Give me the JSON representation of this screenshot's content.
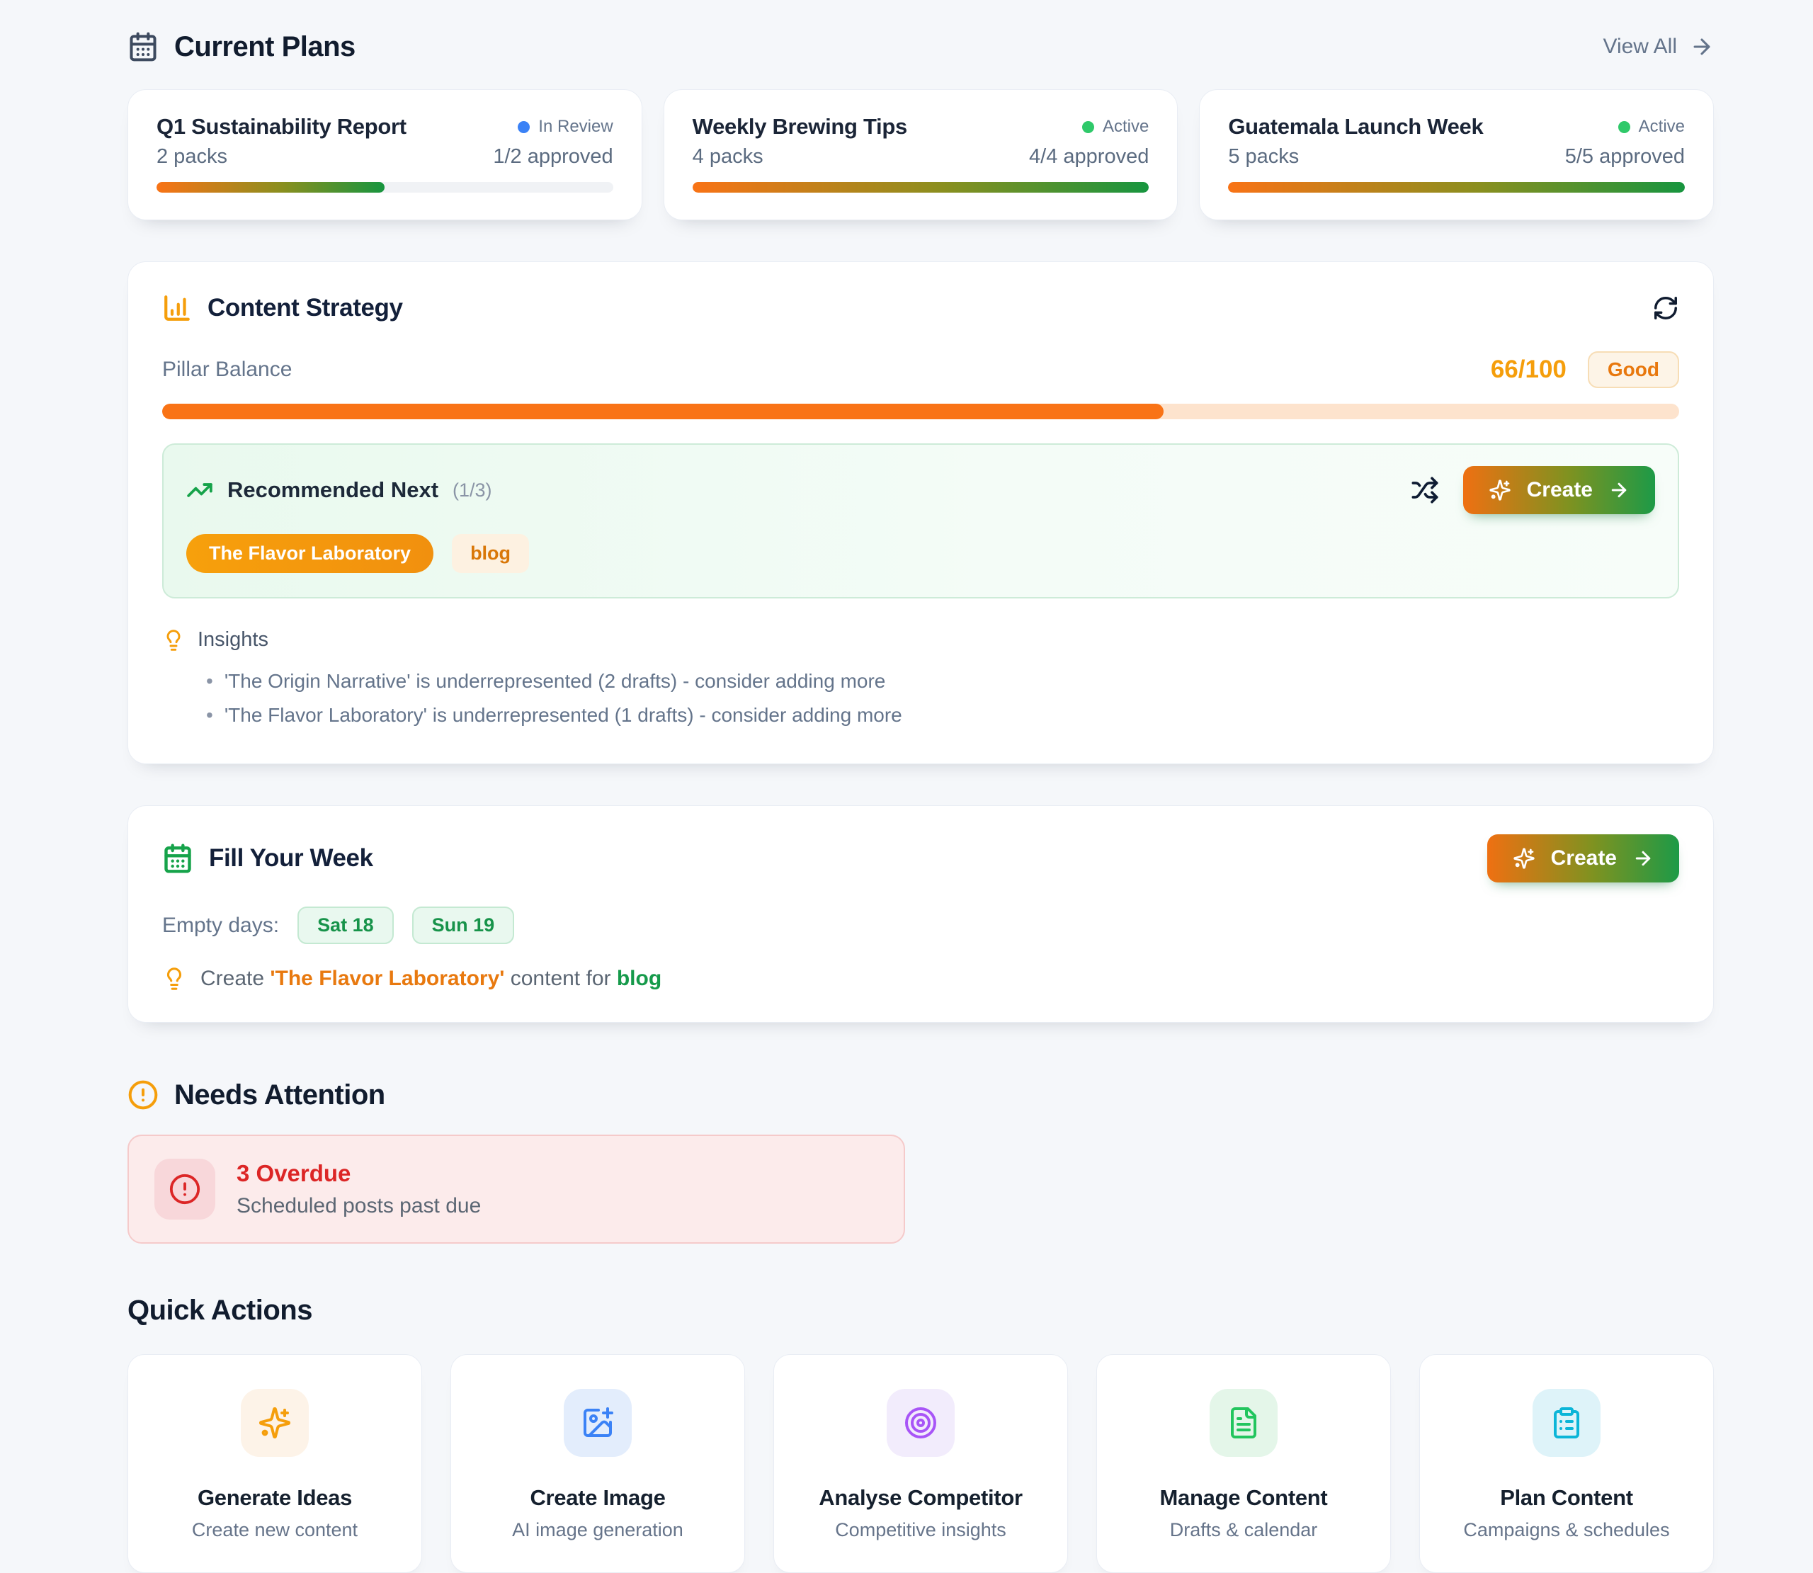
{
  "colors": {
    "accent_orange": "#f97316",
    "accent_green": "#16a34a",
    "status_blue": "#3b82f6",
    "status_green": "#2fc96a",
    "alert_red": "#dc2626"
  },
  "current_plans": {
    "title": "Current Plans",
    "view_all_label": "View All",
    "cards": [
      {
        "title": "Q1 Sustainability Report",
        "status": "In Review",
        "status_color": "#3b82f6",
        "packs": "2 packs",
        "approved": "1/2 approved",
        "progress": 50
      },
      {
        "title": "Weekly Brewing Tips",
        "status": "Active",
        "status_color": "#2fc96a",
        "packs": "4 packs",
        "approved": "4/4 approved",
        "progress": 100
      },
      {
        "title": "Guatemala Launch Week",
        "status": "Active",
        "status_color": "#2fc96a",
        "packs": "5 packs",
        "approved": "5/5 approved",
        "progress": 100
      }
    ]
  },
  "content_strategy": {
    "title": "Content Strategy",
    "pillar_balance_label": "Pillar Balance",
    "score_label": "66/100",
    "score_value": 66,
    "score_badge": "Good",
    "recommended": {
      "title": "Recommended Next",
      "counter": "(1/3)",
      "pillar_tag": "The Flavor Laboratory",
      "format_tag": "blog",
      "create_label": "Create"
    },
    "insights": {
      "title": "Insights",
      "items": [
        "'The Origin Narrative' is underrepresented (2 drafts) - consider adding more",
        "'The Flavor Laboratory' is underrepresented (1 drafts) - consider adding more"
      ]
    }
  },
  "fill_your_week": {
    "title": "Fill Your Week",
    "create_label": "Create",
    "empty_days_label": "Empty days:",
    "days": [
      "Sat 18",
      "Sun 19"
    ],
    "tip": {
      "prefix": "Create",
      "pillar": "'The Flavor Laboratory'",
      "middle": "content for",
      "format": "blog"
    }
  },
  "needs_attention": {
    "title": "Needs Attention",
    "alert": {
      "title": "3 Overdue",
      "subtitle": "Scheduled posts past due"
    }
  },
  "quick_actions": {
    "title": "Quick Actions",
    "items": [
      {
        "title": "Generate Ideas",
        "subtitle": "Create new content",
        "icon": "sparkles-icon",
        "accent": "#f59e0b",
        "bg": "#fdf3e8"
      },
      {
        "title": "Create Image",
        "subtitle": "AI image generation",
        "icon": "image-plus-icon",
        "accent": "#3b82f6",
        "bg": "#e3edfc"
      },
      {
        "title": "Analyse Competitor",
        "subtitle": "Competitive insights",
        "icon": "target-icon",
        "accent": "#a855f7",
        "bg": "#f2ecfc"
      },
      {
        "title": "Manage Content",
        "subtitle": "Drafts & calendar",
        "icon": "file-text-icon",
        "accent": "#22c55e",
        "bg": "#e4f6e9"
      },
      {
        "title": "Plan Content",
        "subtitle": "Campaigns & schedules",
        "icon": "clipboard-list-icon",
        "accent": "#0cb5d8",
        "bg": "#def3f9"
      }
    ]
  }
}
